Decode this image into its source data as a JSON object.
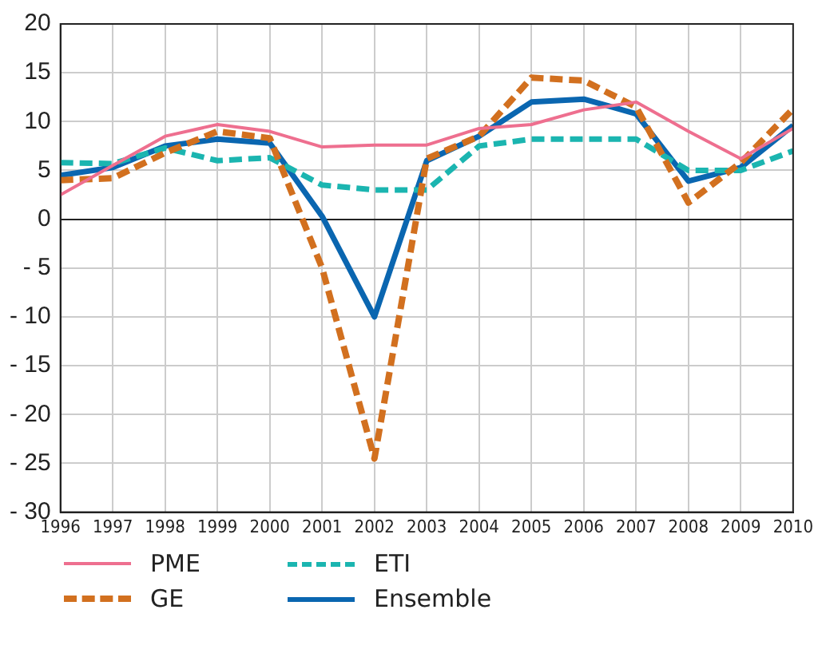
{
  "chart_data": {
    "type": "line",
    "x": [
      1996,
      1997,
      1998,
      1999,
      2000,
      2001,
      2002,
      2003,
      2004,
      2005,
      2006,
      2007,
      2008,
      2009,
      2010
    ],
    "xlim": [
      1996,
      2010
    ],
    "xticks": [
      1996,
      1997,
      1998,
      1999,
      2000,
      2001,
      2002,
      2003,
      2004,
      2005,
      2006,
      2007,
      2008,
      2009,
      2010
    ],
    "ylim": [
      -30,
      20
    ],
    "yticks": [
      {
        "value": -30,
        "label": "- 30"
      },
      {
        "value": -25,
        "label": "- 25"
      },
      {
        "value": -20,
        "label": "- 20"
      },
      {
        "value": -15,
        "label": "- 15"
      },
      {
        "value": -10,
        "label": "- 10"
      },
      {
        "value": -5,
        "label": "- 5"
      },
      0,
      5,
      10,
      15,
      20
    ],
    "grid": true,
    "legend": "bottom",
    "marker": "none",
    "series": [
      {
        "name": "PME",
        "color": "#ee6f8f",
        "line_style": "solid",
        "values": [
          2.5,
          5.5,
          8.5,
          9.7,
          9.0,
          7.4,
          7.6,
          7.6,
          9.3,
          9.7,
          11.2,
          12.0,
          9.0,
          6.2,
          9.3
        ]
      },
      {
        "name": "GE",
        "color": "#d2701f",
        "line_style": "dashed",
        "values": [
          4.0,
          4.2,
          6.8,
          9.0,
          8.3,
          -5.0,
          -24.5,
          6.2,
          8.5,
          14.5,
          14.2,
          11.5,
          1.7,
          5.8,
          11.3
        ]
      },
      {
        "name": "ETI",
        "color": "#1bb5b0",
        "line_style": "dashed",
        "values": [
          5.8,
          5.7,
          7.3,
          6.0,
          6.3,
          3.5,
          3.0,
          3.0,
          7.5,
          8.2,
          8.2,
          8.2,
          5.0,
          5.0,
          7.0
        ]
      },
      {
        "name": "Ensemble",
        "color": "#0a66b0",
        "line_style": "solid",
        "values": [
          4.5,
          5.3,
          7.5,
          8.2,
          7.8,
          0.3,
          -10.0,
          6.0,
          8.5,
          12.0,
          12.3,
          10.8,
          3.9,
          5.3,
          9.6
        ]
      }
    ]
  }
}
